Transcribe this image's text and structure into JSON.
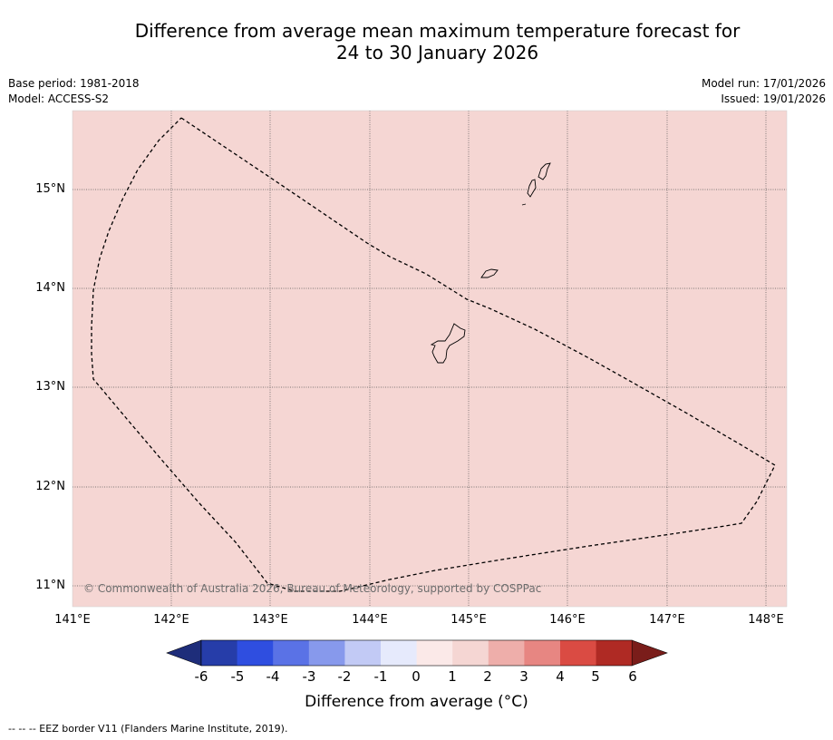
{
  "title": {
    "line1": "Difference from average mean maximum temperature forecast for",
    "line2": "24 to 30 January 2026"
  },
  "meta": {
    "base_period": "Base period: 1981-2018",
    "model": "Model: ACCESS-S2",
    "model_run": "Model run: 17/01/2026",
    "issued": "Issued: 19/01/2026"
  },
  "map": {
    "fill_color": "#f5d6d3",
    "latitude_labels": [
      "15°N",
      "14°N",
      "13°N",
      "12°N",
      "11°N"
    ],
    "longitude_labels": [
      "141°E",
      "142°E",
      "143°E",
      "144°E",
      "145°E",
      "146°E",
      "147°E",
      "148°E"
    ],
    "copyright": "© Commonwealth of Australia 2026, Bureau of Meteorology, supported by COSPPac"
  },
  "colorbar": {
    "ticks": [
      "-6",
      "-5",
      "-4",
      "-3",
      "-2",
      "-1",
      "0",
      "1",
      "2",
      "3",
      "4",
      "5",
      "6"
    ],
    "colors": [
      "#263da9",
      "#2f4ee0",
      "#5a72e6",
      "#8799ec",
      "#c2caf5",
      "#e6eafc",
      "#fbe9e8",
      "#f5d6d3",
      "#eeaeaa",
      "#e78682",
      "#da4b43",
      "#af2a24"
    ],
    "under_color": "#1e2d7a",
    "over_color": "#7a1d1a",
    "label": "Difference from average (°C)"
  },
  "footnote": "--  --  -- EEZ border V11 (Flanders Marine Institute, 2019)."
}
